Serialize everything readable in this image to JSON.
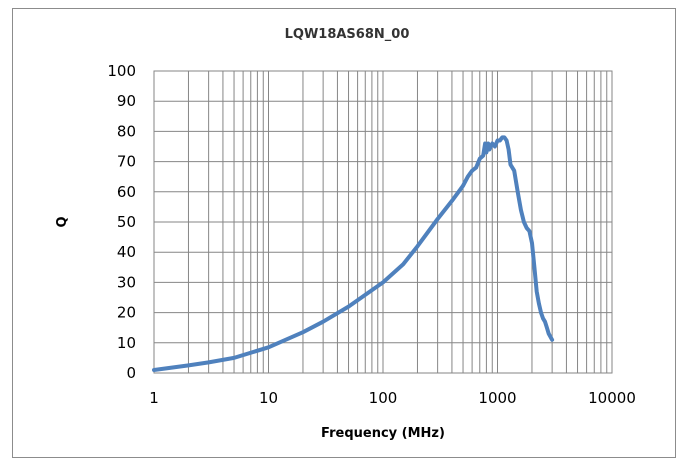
{
  "chart_data": {
    "type": "line",
    "title": "LQW18AS68N_00",
    "xlabel": "Frequency (MHz)",
    "ylabel": "Q",
    "x_scale": "log",
    "xlim": [
      1,
      10000
    ],
    "ylim": [
      0,
      100
    ],
    "x_ticks": [
      "1",
      "10",
      "100",
      "1000",
      "10000"
    ],
    "y_ticks": [
      "0",
      "10",
      "20",
      "30",
      "40",
      "50",
      "60",
      "70",
      "80",
      "90",
      "100"
    ],
    "grid": true,
    "legend": "none",
    "series": [
      {
        "color": "#4f81bd",
        "x": [
          1,
          2,
          3,
          5,
          10,
          20,
          30,
          50,
          100,
          150,
          200,
          300,
          400,
          500,
          550,
          600,
          650,
          700,
          750,
          780,
          800,
          830,
          850,
          900,
          950,
          1000,
          1050,
          1100,
          1150,
          1200,
          1250,
          1300,
          1400,
          1500,
          1600,
          1700,
          1800,
          1900,
          2000,
          2100,
          2200,
          2300,
          2400,
          2500,
          2600,
          2700,
          2800,
          3000
        ],
        "y": [
          1,
          2.5,
          3.5,
          5,
          8.5,
          13.5,
          17,
          22,
          30,
          36,
          42,
          51,
          57,
          62,
          65,
          67,
          68,
          71,
          72,
          76,
          73,
          76,
          74,
          76,
          75,
          77,
          77,
          78,
          78,
          77,
          74,
          69,
          67,
          60,
          54,
          50,
          48,
          47,
          43,
          35,
          27,
          23,
          20,
          18,
          17,
          15,
          13,
          11
        ]
      }
    ]
  }
}
